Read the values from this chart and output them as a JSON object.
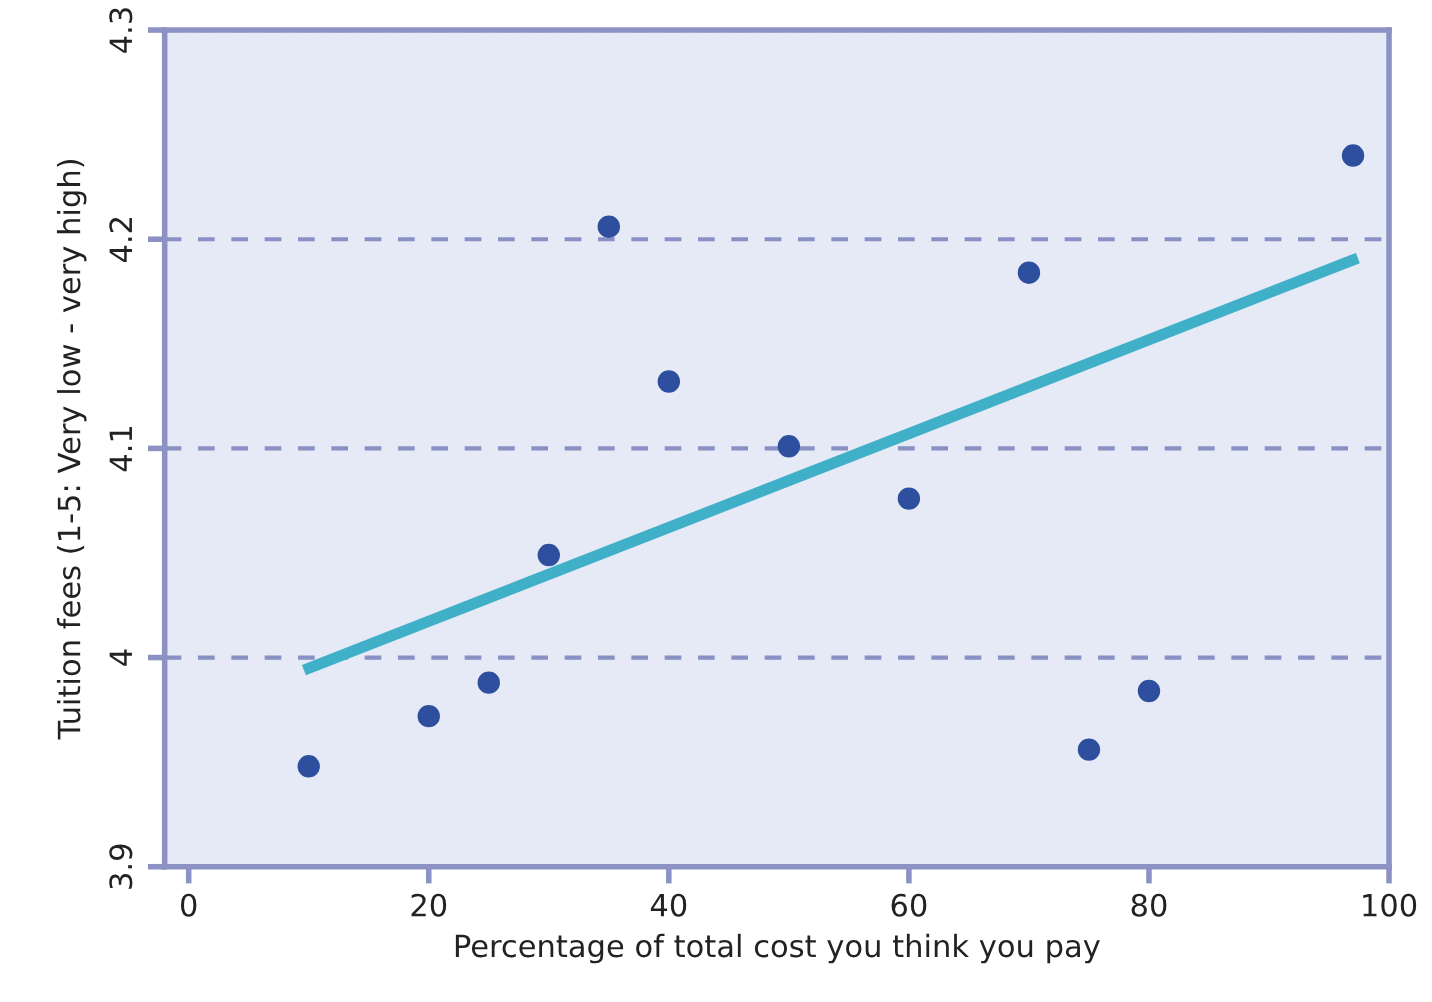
{
  "chart_data": {
    "type": "scatter",
    "xlabel": "Percentage of total cost you think you pay",
    "ylabel": "Tuition fees (1-5: Very low - very high)",
    "xlim": [
      -2,
      100
    ],
    "xticks": [
      0,
      20,
      40,
      60,
      80,
      100
    ],
    "ylim": [
      3.9,
      4.3
    ],
    "yticks": [
      3.9,
      4,
      4.1,
      4.2,
      4.3
    ],
    "grid": "y",
    "legend": false,
    "series": [
      {
        "color": "#2e4e9e",
        "marker": "circle",
        "x": [
          10,
          20,
          25,
          30,
          35,
          40,
          50,
          60,
          70,
          75,
          80,
          97
        ],
        "values": [
          3.948,
          3.972,
          3.988,
          4.049,
          4.206,
          4.132,
          4.101,
          4.076,
          4.184,
          3.956,
          3.984,
          4.24
        ]
      },
      {
        "type": "line",
        "color": "#3fb0c8",
        "marker": "none",
        "line_style": "solid",
        "x": [
          9.6,
          97.4
        ],
        "values": [
          3.994,
          4.191
        ]
      }
    ]
  }
}
